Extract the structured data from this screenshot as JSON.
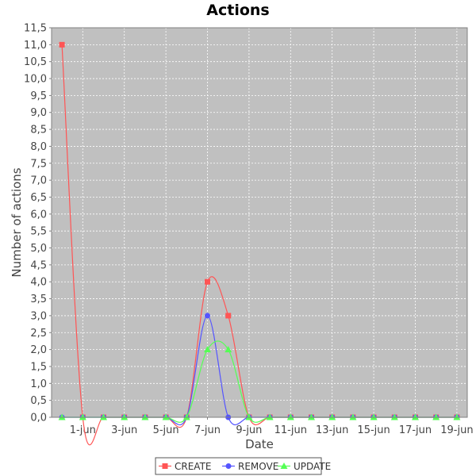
{
  "chart_data": {
    "type": "line",
    "title": "Actions",
    "xlabel": "Date",
    "ylabel": "Number of actions",
    "grid": true,
    "legend_placement": "bottom",
    "background_color": "#c0c0c0",
    "x": [
      "31-may",
      "1-jun",
      "2-jun",
      "3-jun",
      "4-jun",
      "5-jun",
      "6-jun",
      "7-jun",
      "8-jun",
      "9-jun",
      "10-jun",
      "11-jun",
      "12-jun",
      "13-jun",
      "14-jun",
      "15-jun",
      "16-jun",
      "17-jun",
      "18-jun",
      "19-jun"
    ],
    "x_tick_labels": [
      "1-jun",
      "3-jun",
      "5-jun",
      "7-jun",
      "9-jun",
      "11-jun",
      "13-jun",
      "15-jun",
      "17-jun",
      "19-jun"
    ],
    "ylim": [
      0,
      11.5
    ],
    "y_tick_labels": [
      "0,0",
      "0,5",
      "1,0",
      "1,5",
      "2,0",
      "2,5",
      "3,0",
      "3,5",
      "4,0",
      "4,5",
      "5,0",
      "5,5",
      "6,0",
      "6,5",
      "7,0",
      "7,5",
      "8,0",
      "8,5",
      "9,0",
      "9,5",
      "10,0",
      "10,5",
      "11,0",
      "11,5"
    ],
    "series": [
      {
        "name": "CREATE",
        "color": "#ff5555",
        "marker": "square",
        "values": [
          11,
          0,
          0,
          0,
          0,
          0,
          0,
          4,
          3,
          0,
          0,
          0,
          0,
          0,
          0,
          0,
          0,
          0,
          0,
          0
        ]
      },
      {
        "name": "REMOVE",
        "color": "#5555ff",
        "marker": "circle",
        "values": [
          0,
          0,
          0,
          0,
          0,
          0,
          0,
          3,
          0,
          0,
          0,
          0,
          0,
          0,
          0,
          0,
          0,
          0,
          0,
          0
        ]
      },
      {
        "name": "UPDATE",
        "color": "#55ff55",
        "marker": "triangle",
        "values": [
          0,
          0,
          0,
          0,
          0,
          0,
          0,
          2,
          2,
          0,
          0,
          0,
          0,
          0,
          0,
          0,
          0,
          0,
          0,
          0
        ]
      }
    ]
  }
}
